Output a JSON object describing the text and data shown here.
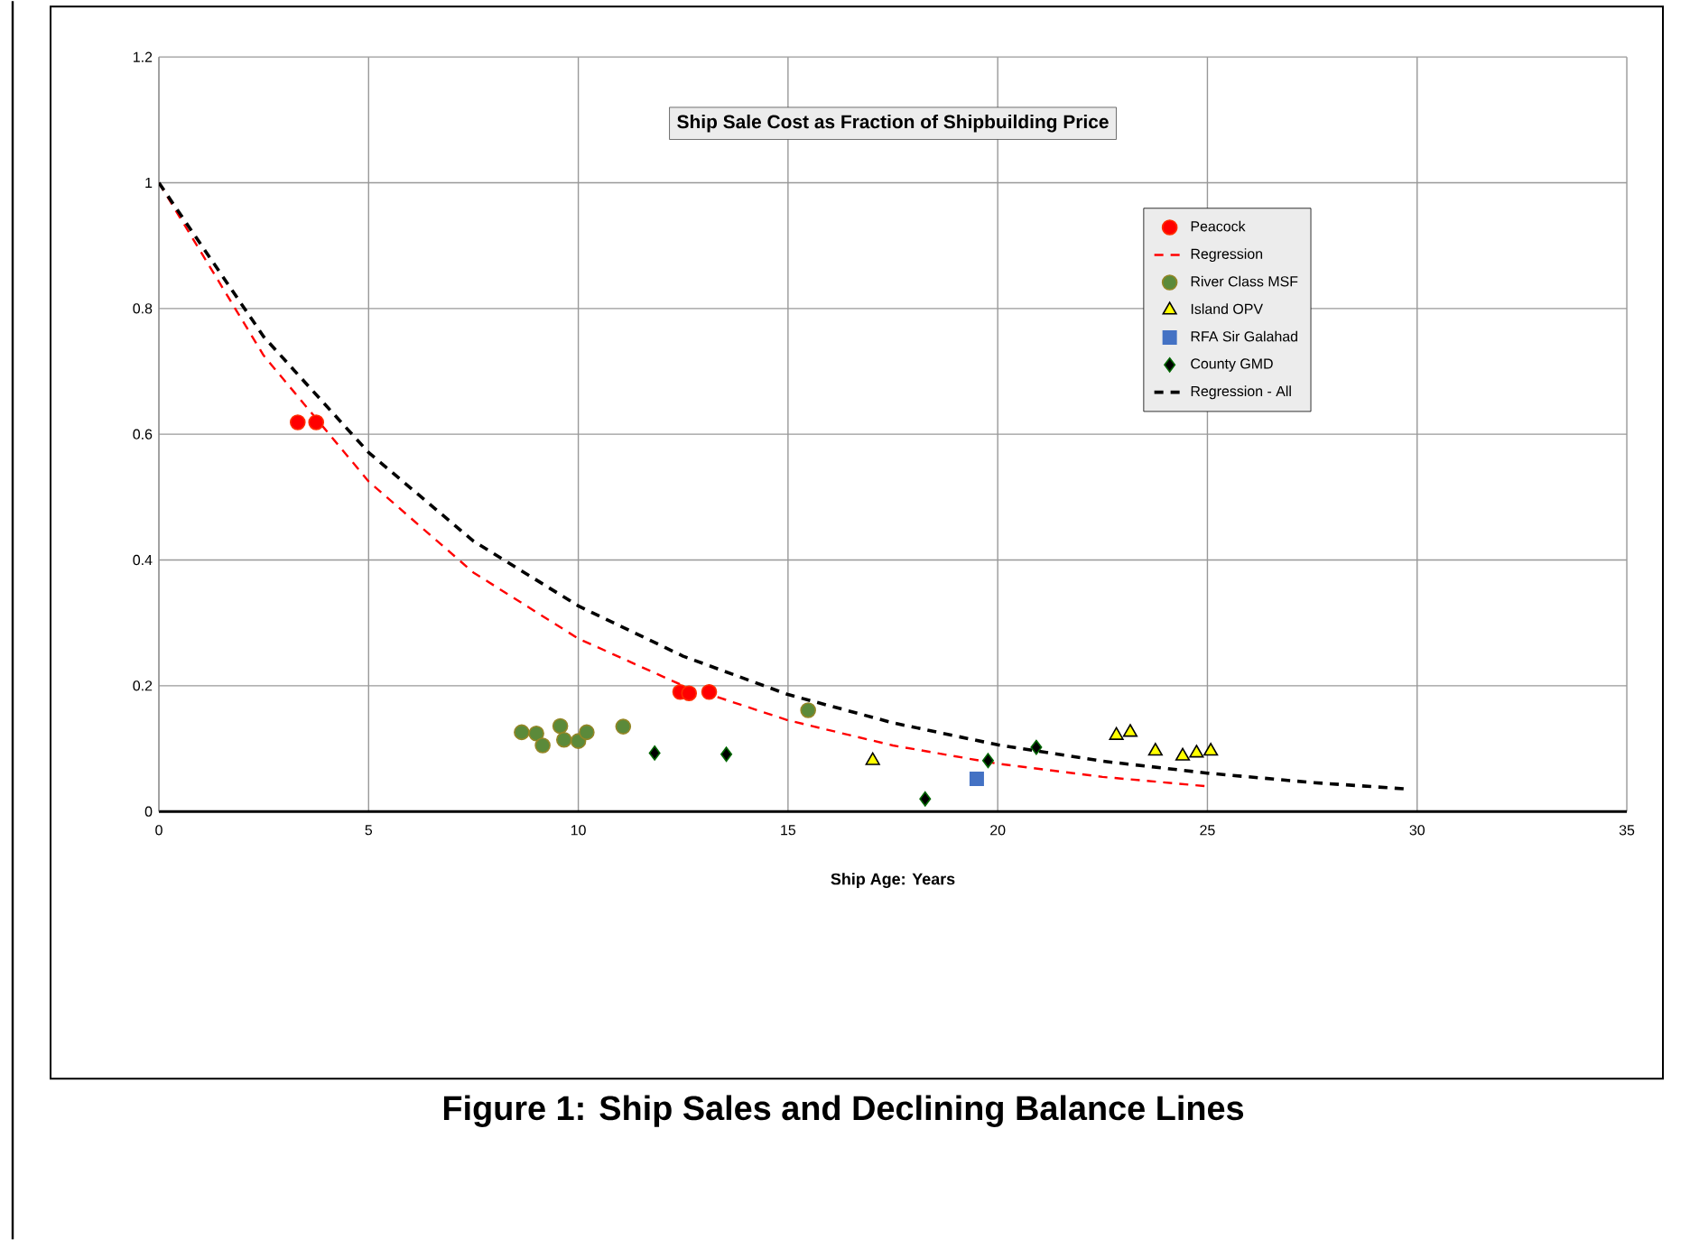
{
  "chart_data": {
    "type": "scatter",
    "title": "Ship Sale Cost as Fraction of Shipbuilding Price",
    "xlabel": "Ship Age: Years",
    "annotations": [
      "Figure 1: Ship Sales and Declining Balance Lines"
    ],
    "xlim": [
      0,
      35
    ],
    "xticks": [
      0,
      5,
      10,
      15,
      20,
      25,
      30,
      35
    ],
    "ylim": [
      0,
      1.2
    ],
    "yticks": [
      0,
      0.2,
      0.4,
      0.6,
      0.8,
      1,
      1.2
    ],
    "grid": true,
    "legend": "top right",
    "series": [
      {
        "name": "Peacock",
        "color": "#ff0000",
        "marker": "circle",
        "x": [
          3.31,
          3.75,
          12.43,
          12.64,
          13.12
        ],
        "values": [
          0.619,
          0.619,
          0.19,
          0.188,
          0.19
        ]
      },
      {
        "name": "Regression",
        "type": "line",
        "color": "#ff0000",
        "marker": "none",
        "line_style": "dashed",
        "x": [
          0,
          2.5,
          5,
          7.5,
          10,
          12.5,
          15,
          17.5,
          20,
          22.5,
          25
        ],
        "values": [
          1,
          0.725,
          0.525,
          0.38,
          0.275,
          0.2,
          0.145,
          0.105,
          0.076,
          0.055,
          0.04
        ]
      },
      {
        "name": "River Class MSF",
        "color": "#5b8a3a",
        "marker": "circle",
        "x": [
          8.65,
          9.0,
          9.15,
          9.57,
          9.66,
          10.0,
          10.2,
          11.07,
          15.48
        ],
        "values": [
          0.126,
          0.124,
          0.105,
          0.136,
          0.114,
          0.112,
          0.126,
          0.135,
          0.161
        ]
      },
      {
        "name": "Island OPV",
        "color": "#ffff00",
        "marker": "triangle",
        "x": [
          17.02,
          22.83,
          23.16,
          23.76,
          24.41,
          24.74,
          25.08
        ],
        "values": [
          0.081,
          0.121,
          0.126,
          0.096,
          0.088,
          0.093,
          0.096
        ]
      },
      {
        "name": "RFA Sir Galahad",
        "color": "#4472c4",
        "marker": "square",
        "x": [
          19.5
        ],
        "values": [
          0.052
        ]
      },
      {
        "name": "County GMD",
        "color": "#000000",
        "marker": "diamond",
        "x": [
          11.82,
          13.53,
          18.27,
          19.77,
          20.92
        ],
        "values": [
          0.093,
          0.091,
          0.02,
          0.081,
          0.102
        ]
      },
      {
        "name": "Regression - All",
        "type": "line",
        "color": "#000000",
        "marker": "none",
        "line_style": "dashed",
        "x": [
          0,
          2.5,
          5,
          7.5,
          10,
          12.5,
          15,
          17.5,
          20,
          22.5,
          25,
          27.5,
          29.7
        ],
        "values": [
          1,
          0.755,
          0.571,
          0.43,
          0.327,
          0.247,
          0.186,
          0.141,
          0.106,
          0.08,
          0.061,
          0.046,
          0.036
        ]
      }
    ]
  }
}
